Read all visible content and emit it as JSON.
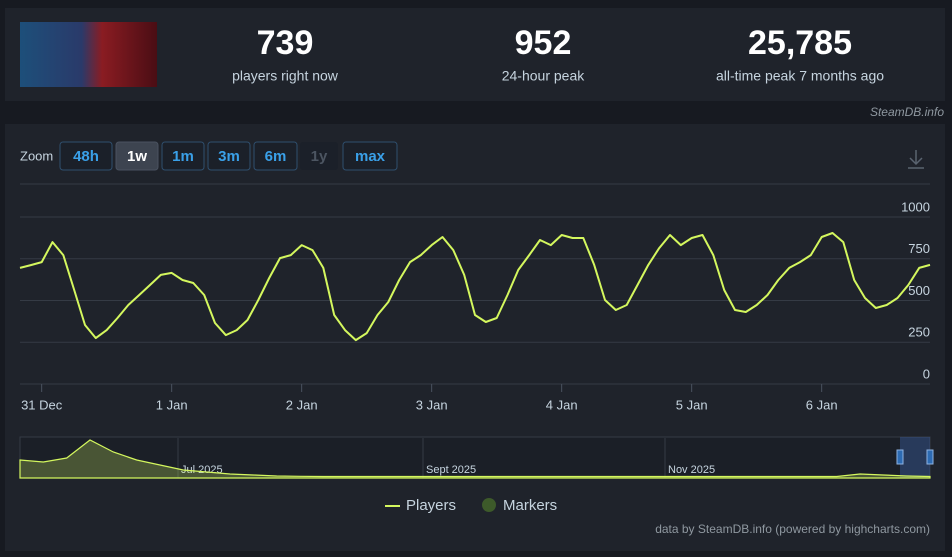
{
  "stats": [
    {
      "value": "739",
      "label": "players right now"
    },
    {
      "value": "952",
      "label": "24-hour peak"
    },
    {
      "value": "25,785",
      "label": "all-time peak 7 months ago"
    }
  ],
  "source": "SteamDB.info",
  "zoom": {
    "label": "Zoom",
    "buttons": [
      "48h",
      "1w",
      "1m",
      "3m",
      "6m",
      "1y",
      "max"
    ],
    "selected": 1,
    "disabled": 5
  },
  "chart_data": {
    "type": "line",
    "categories": [
      null,
      null,
      "31 Dec",
      null,
      null,
      null,
      null,
      null,
      null,
      null,
      null,
      null,
      null,
      null,
      "1 Jan",
      null,
      null,
      null,
      null,
      null,
      null,
      null,
      null,
      null,
      null,
      null,
      "2 Jan",
      null,
      null,
      null,
      null,
      null,
      null,
      null,
      null,
      null,
      null,
      null,
      "3 Jan",
      null,
      null,
      null,
      null,
      null,
      null,
      null,
      null,
      null,
      null,
      null,
      "4 Jan",
      null,
      null,
      null,
      null,
      null,
      null,
      null,
      null,
      null,
      null,
      null,
      "5 Jan",
      null,
      null,
      null,
      null,
      null,
      null,
      null,
      null,
      null,
      null,
      null,
      "6 Jan",
      null,
      null,
      null,
      null,
      null,
      null,
      null,
      null,
      null,
      null
    ],
    "series": [
      {
        "name": "Players",
        "color": "#d4f75e",
        "values": [
          695,
          712,
          730,
          850,
          772,
          563,
          353,
          275,
          323,
          395,
          473,
          533,
          593,
          653,
          665,
          623,
          605,
          533,
          365,
          293,
          323,
          383,
          503,
          635,
          754,
          772,
          832,
          802,
          695,
          413,
          323,
          263,
          305,
          413,
          491,
          623,
          730,
          772,
          832,
          880,
          802,
          653,
          413,
          371,
          395,
          533,
          683,
          772,
          862,
          832,
          892,
          874,
          874,
          713,
          503,
          443,
          473,
          593,
          713,
          814,
          892,
          832,
          874,
          892,
          772,
          563,
          443,
          431,
          473,
          533,
          623,
          695,
          730,
          772,
          880,
          904,
          850,
          623,
          515,
          455,
          473,
          515,
          593,
          695,
          713
        ]
      }
    ],
    "ylim": [
      0,
      1000
    ],
    "yticks": [
      0,
      250,
      500,
      750,
      1000
    ],
    "grid": true
  },
  "legend": {
    "markers": "Markers",
    "markers_color": "#3d5a2a"
  },
  "navigator": {
    "ylim": [
      0,
      26000
    ],
    "color": "#d4f75e",
    "values": [
      11700,
      10400,
      13000,
      24700,
      16900,
      11700,
      8450,
      5200,
      3900,
      2600,
      1950,
      1300,
      1100,
      1000,
      1000,
      1000,
      1000,
      1000,
      1000,
      1000,
      1000,
      1000,
      1000,
      1000,
      1000,
      1000,
      1000,
      1000,
      1000,
      1000,
      1000,
      1000,
      1000,
      1000,
      1000,
      1000,
      2600,
      1950,
      1300,
      1000
    ],
    "labels": [
      "Jul 2025",
      "Sept 2025",
      "Nov 2025"
    ]
  },
  "credits": "data by SteamDB.info (powered by highcharts.com)"
}
